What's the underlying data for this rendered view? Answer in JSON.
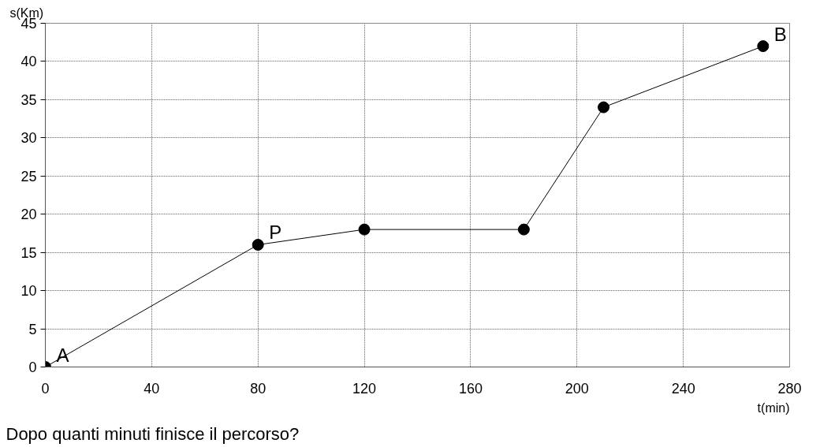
{
  "chart_data": {
    "type": "line",
    "xlabel": "t(min)",
    "ylabel": "s(Km)",
    "x": [
      0,
      80,
      120,
      180,
      210,
      270
    ],
    "series": [
      {
        "color": "#000000",
        "values": [
          0,
          16,
          18,
          18,
          34,
          42
        ]
      }
    ],
    "xlim": [
      0,
      280
    ],
    "xticks": [
      0,
      40,
      80,
      120,
      160,
      200,
      240,
      280
    ],
    "ylim": [
      0,
      45
    ],
    "yticks": [
      0,
      5,
      10,
      15,
      20,
      25,
      30,
      35,
      40,
      45
    ],
    "grid": true,
    "marker": "circle",
    "line_style": "solid",
    "annotations": [
      {
        "text": "A",
        "x": 0,
        "y": 0
      },
      {
        "text": "P",
        "x": 80,
        "y": 16
      },
      {
        "text": "B",
        "x": 270,
        "y": 42
      },
      "Dopo quanti minuti finisce il percorso?"
    ]
  }
}
